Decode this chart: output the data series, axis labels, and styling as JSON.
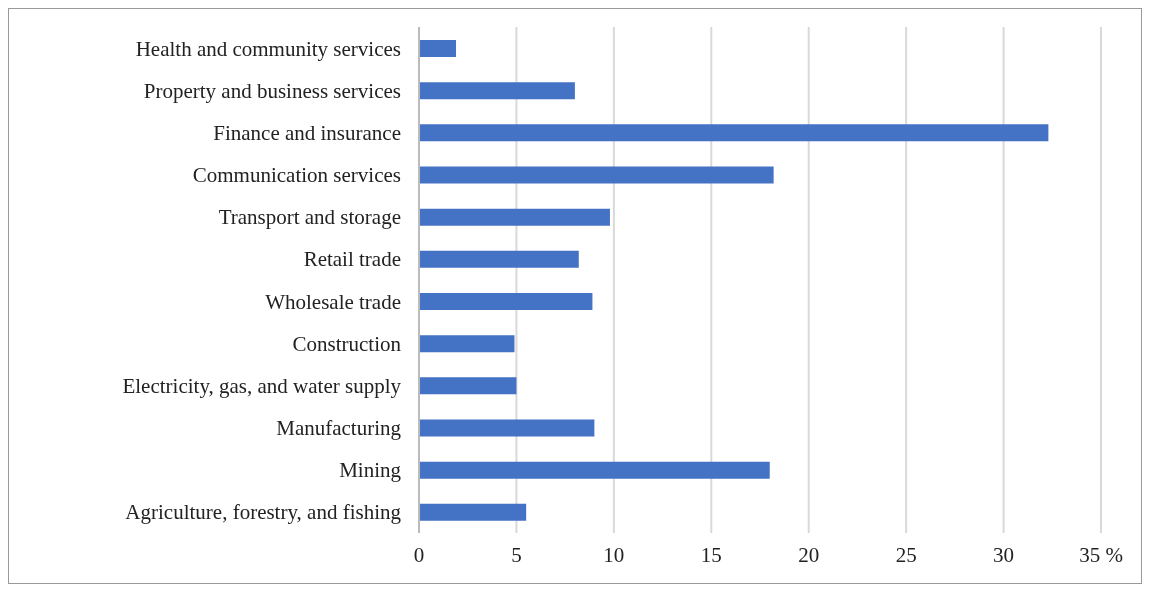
{
  "chart_data": {
    "type": "bar",
    "orientation": "horizontal",
    "categories": [
      "Health and community services",
      "Property and business services",
      "Finance and insurance",
      "Communication services",
      "Transport and storage",
      "Retail trade",
      "Wholesale trade",
      "Construction",
      "Electricity, gas, and water supply",
      "Manufacturing",
      "Mining",
      "Agriculture, forestry, and fishing"
    ],
    "values": [
      1.9,
      8.0,
      32.3,
      18.2,
      9.8,
      8.2,
      8.9,
      4.9,
      5.0,
      9.0,
      18.0,
      5.5
    ],
    "color": "#4472c4",
    "xlim": [
      0,
      35
    ],
    "xticks": [
      0,
      5,
      10,
      15,
      20,
      25,
      30,
      {
        "value": 35,
        "label": "35 %"
      }
    ],
    "grid": "x"
  }
}
